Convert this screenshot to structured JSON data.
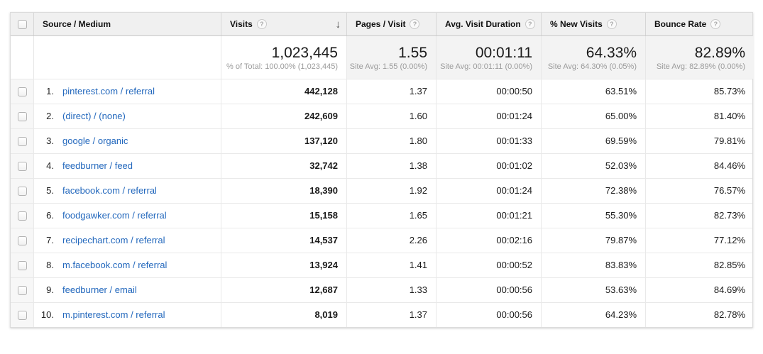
{
  "icons": {
    "help": "?",
    "sort_desc": "↓"
  },
  "colors": {
    "header_bg": "#f0f0f0",
    "summary_bg": "#f3f3f3",
    "checkbox_col_bg": "#f7f7f7",
    "link_blue": "#2368bd",
    "border": "#e9e9e9"
  },
  "table": {
    "columns": [
      {
        "key": "source",
        "label": "Source / Medium",
        "help": false,
        "sort": null
      },
      {
        "key": "visits",
        "label": "Visits",
        "help": true,
        "sort": "desc"
      },
      {
        "key": "pages",
        "label": "Pages / Visit",
        "help": true,
        "sort": null
      },
      {
        "key": "duration",
        "label": "Avg. Visit Duration",
        "help": true,
        "sort": null
      },
      {
        "key": "new",
        "label": "% New Visits",
        "help": true,
        "sort": null
      },
      {
        "key": "bounce",
        "label": "Bounce Rate",
        "help": true,
        "sort": null
      }
    ],
    "summary": [
      {
        "value": "1,023,445",
        "sub": "% of Total: 100.00% (1,023,445)",
        "highlight": true
      },
      {
        "value": "1.55",
        "sub": "Site Avg: 1.55 (0.00%)"
      },
      {
        "value": "00:01:11",
        "sub": "Site Avg: 00:01:11 (0.00%)"
      },
      {
        "value": "64.33%",
        "sub": "Site Avg: 64.30% (0.05%)"
      },
      {
        "value": "82.89%",
        "sub": "Site Avg: 82.89% (0.00%)"
      }
    ],
    "rows": [
      {
        "rank": "1.",
        "source": "pinterest.com / referral",
        "visits": "442,128",
        "pages": "1.37",
        "duration": "00:00:50",
        "new_visits": "63.51%",
        "bounce": "85.73%"
      },
      {
        "rank": "2.",
        "source": "(direct) / (none)",
        "visits": "242,609",
        "pages": "1.60",
        "duration": "00:01:24",
        "new_visits": "65.00%",
        "bounce": "81.40%"
      },
      {
        "rank": "3.",
        "source": "google / organic",
        "visits": "137,120",
        "pages": "1.80",
        "duration": "00:01:33",
        "new_visits": "69.59%",
        "bounce": "79.81%"
      },
      {
        "rank": "4.",
        "source": "feedburner / feed",
        "visits": "32,742",
        "pages": "1.38",
        "duration": "00:01:02",
        "new_visits": "52.03%",
        "bounce": "84.46%"
      },
      {
        "rank": "5.",
        "source": "facebook.com / referral",
        "visits": "18,390",
        "pages": "1.92",
        "duration": "00:01:24",
        "new_visits": "72.38%",
        "bounce": "76.57%"
      },
      {
        "rank": "6.",
        "source": "foodgawker.com / referral",
        "visits": "15,158",
        "pages": "1.65",
        "duration": "00:01:21",
        "new_visits": "55.30%",
        "bounce": "82.73%"
      },
      {
        "rank": "7.",
        "source": "recipechart.com / referral",
        "visits": "14,537",
        "pages": "2.26",
        "duration": "00:02:16",
        "new_visits": "79.87%",
        "bounce": "77.12%"
      },
      {
        "rank": "8.",
        "source": "m.facebook.com / referral",
        "visits": "13,924",
        "pages": "1.41",
        "duration": "00:00:52",
        "new_visits": "83.83%",
        "bounce": "82.85%"
      },
      {
        "rank": "9.",
        "source": "feedburner / email",
        "visits": "12,687",
        "pages": "1.33",
        "duration": "00:00:56",
        "new_visits": "53.63%",
        "bounce": "84.69%"
      },
      {
        "rank": "10.",
        "source": "m.pinterest.com / referral",
        "visits": "8,019",
        "pages": "1.37",
        "duration": "00:00:56",
        "new_visits": "64.23%",
        "bounce": "82.78%"
      }
    ]
  }
}
